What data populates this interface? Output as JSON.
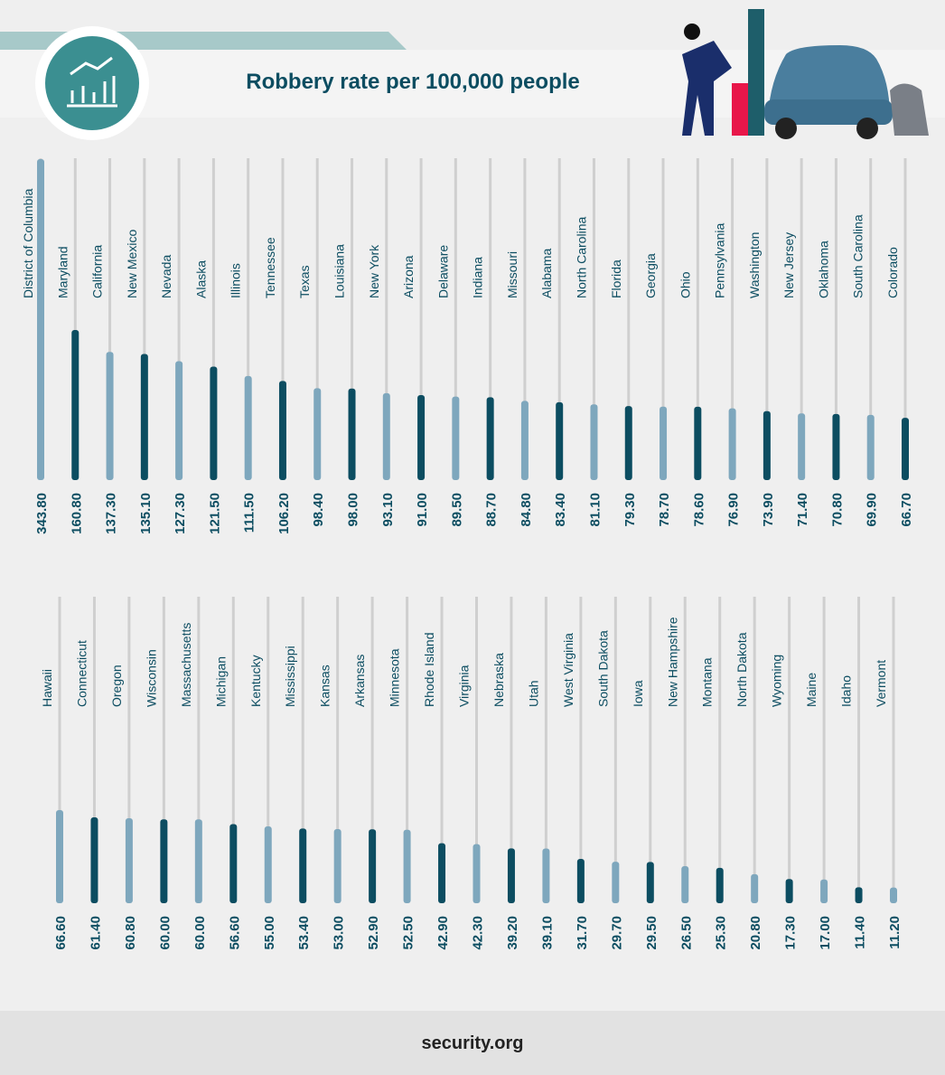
{
  "title": "Robbery rate per 100,000 people",
  "footer": "security.org",
  "chart_data": [
    {
      "type": "bar",
      "categories": [
        "District of Columbia",
        "Maryland",
        "California",
        "New Mexico",
        "Nevada",
        "Alaska",
        "Illinois",
        "Tennessee",
        "Texas",
        "Louisiana",
        "New York",
        "Arizona",
        "Delaware",
        "Indiana",
        "Missouri",
        "Alabama",
        "North Carolina",
        "Florida",
        "Georgia",
        "Ohio",
        "Pennsylvania",
        "Washington",
        "New Jersey",
        "Oklahoma",
        "South Carolina",
        "Colorado"
      ],
      "values": [
        343.8,
        160.8,
        137.3,
        135.1,
        127.3,
        121.5,
        111.5,
        106.2,
        98.4,
        98.0,
        93.1,
        91.0,
        89.5,
        88.7,
        84.8,
        83.4,
        81.1,
        79.3,
        78.7,
        78.6,
        76.9,
        73.9,
        71.4,
        70.8,
        69.9,
        66.7
      ],
      "value_labels": [
        "343.80",
        "160.80",
        "137.30",
        "135.10",
        "127.30",
        "121.50",
        "111.50",
        "106.20",
        "98.40",
        "98.00",
        "93.10",
        "91.00",
        "89.50",
        "88.70",
        "84.80",
        "83.40",
        "81.10",
        "79.30",
        "78.70",
        "78.60",
        "76.90",
        "73.90",
        "71.40",
        "70.80",
        "69.90",
        "66.70"
      ],
      "colors": [
        "#7ea7bd",
        "#0c4d61"
      ]
    },
    {
      "type": "bar",
      "categories": [
        "Hawaii",
        "Connecticut",
        "Oregon",
        "Wisconsin",
        "Massachusetts",
        "Michigan",
        "Kentucky",
        "Mississippi",
        "Kansas",
        "Arkansas",
        "Minnesota",
        "Rhode Island",
        "Virginia",
        "Nebraska",
        "Utah",
        "West Virginia",
        "South Dakota",
        "Iowa",
        "New Hampshire",
        "Montana",
        "North Dakota",
        "Wyoming",
        "Maine",
        "Idaho",
        "Vermont"
      ],
      "values": [
        66.6,
        61.4,
        60.8,
        60.0,
        60.0,
        56.6,
        55.0,
        53.4,
        53.0,
        52.9,
        52.5,
        42.9,
        42.3,
        39.2,
        39.1,
        31.7,
        29.7,
        29.5,
        26.5,
        25.3,
        20.8,
        17.3,
        17.0,
        11.4,
        11.2
      ],
      "value_labels": [
        "66.60",
        "61.40",
        "60.80",
        "60.00",
        "60.00",
        "56.60",
        "55.00",
        "53.40",
        "53.00",
        "52.90",
        "52.50",
        "42.90",
        "42.30",
        "39.20",
        "39.10",
        "31.70",
        "29.70",
        "29.50",
        "26.50",
        "25.30",
        "20.80",
        "17.30",
        "17.00",
        "11.40",
        "11.20"
      ],
      "colors": [
        "#7ea7bd",
        "#0c4d61"
      ]
    }
  ]
}
